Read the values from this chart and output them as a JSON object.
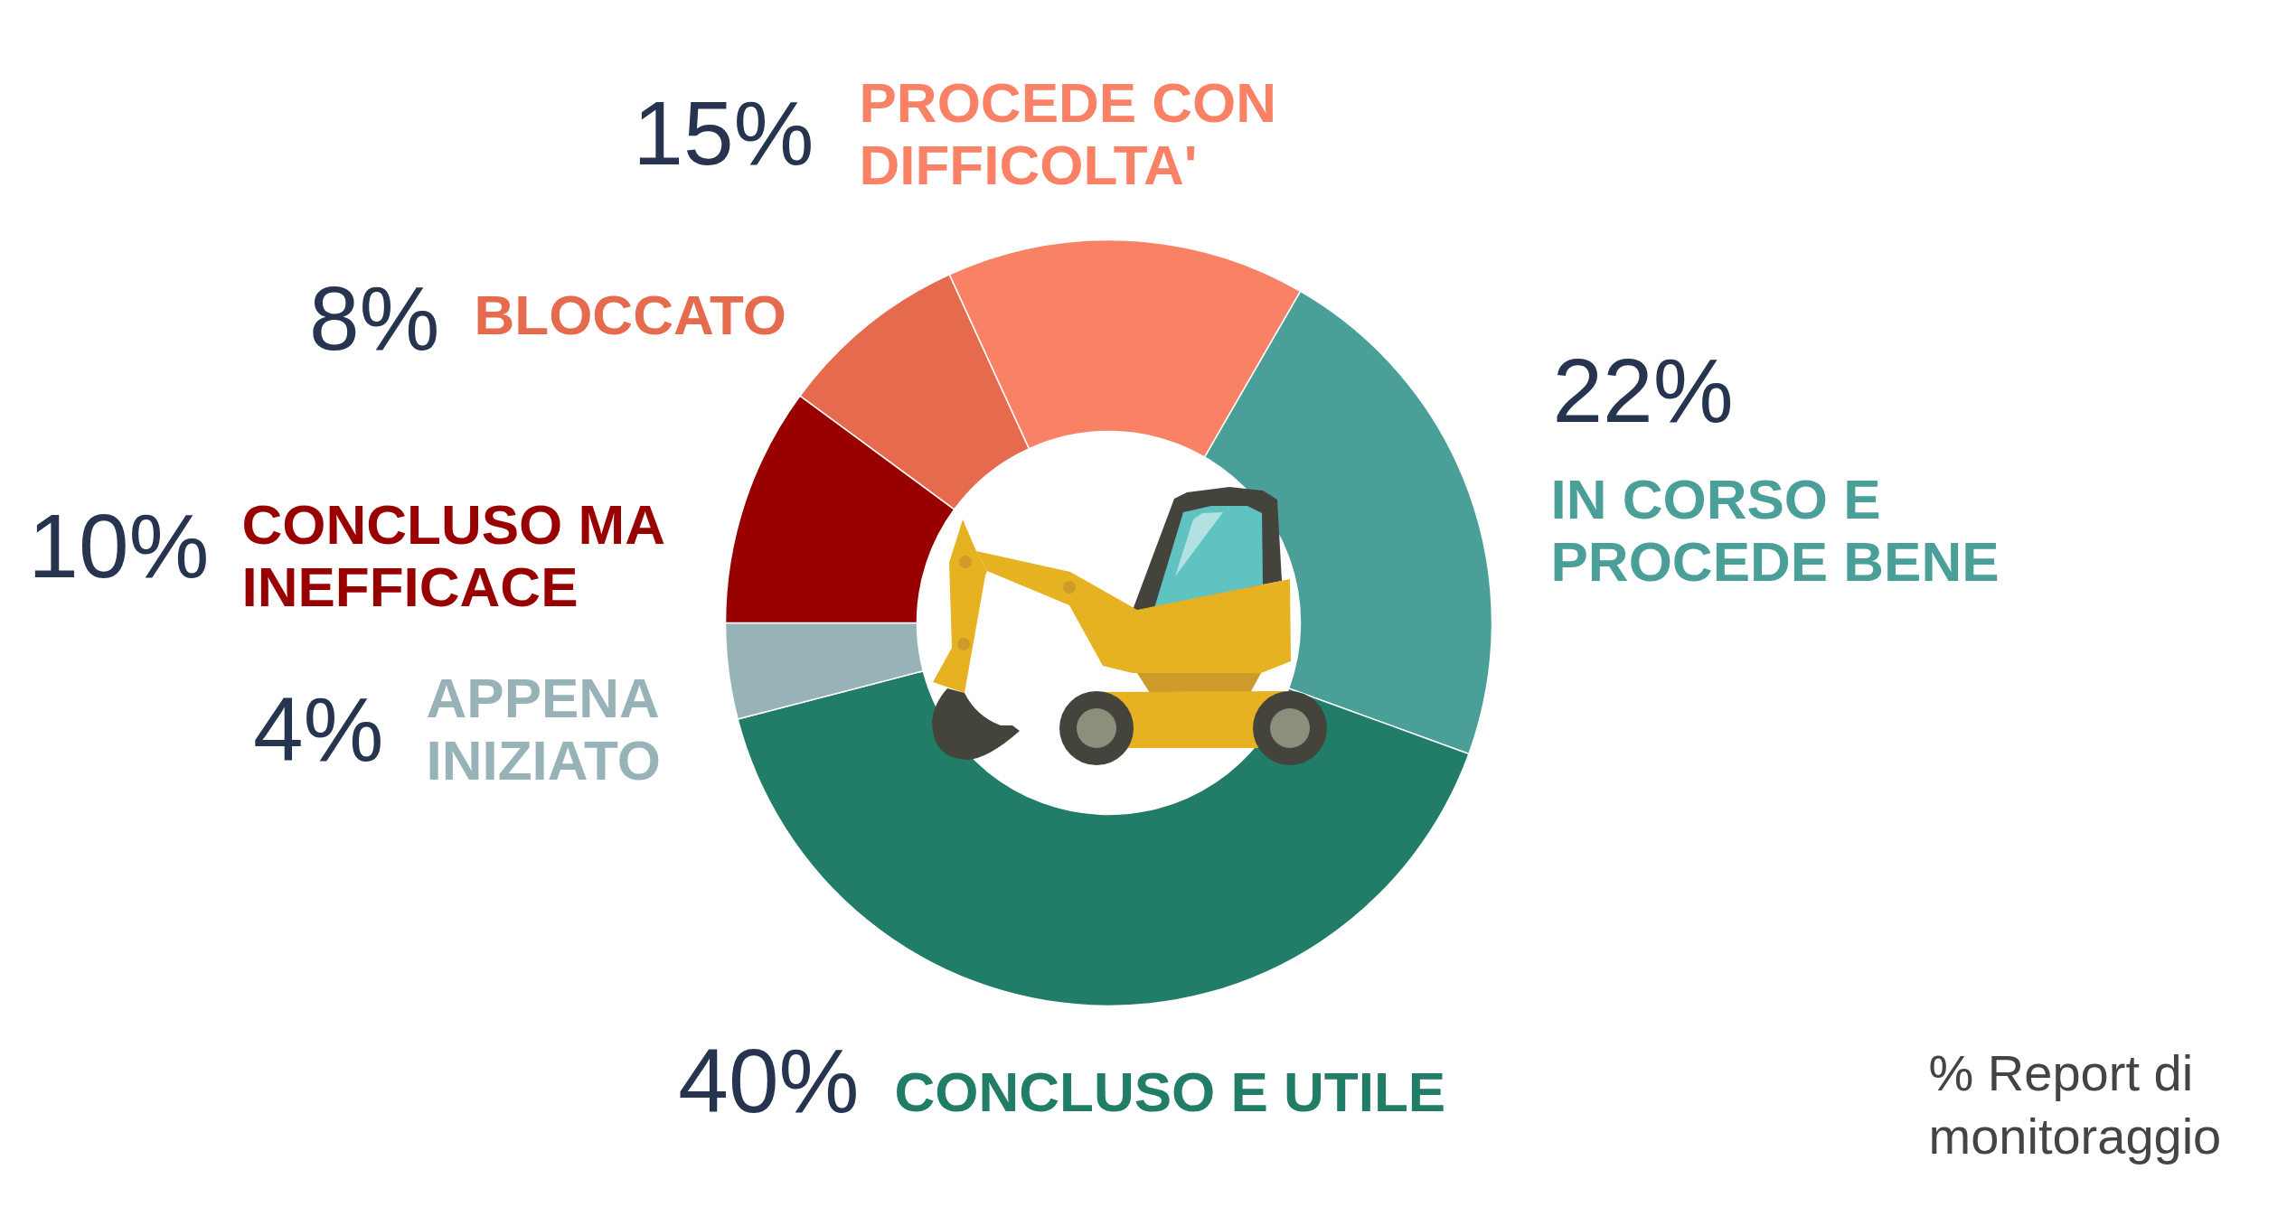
{
  "chart_data": {
    "type": "donut",
    "categories": [
      "IN CORSO E PROCEDE BENE",
      "CONCLUSO E UTILE",
      "APPENA INIZIATO",
      "CONCLUSO MA INEFFICACE",
      "BLOCCATO",
      "PROCEDE CON DIFFICOLTA'"
    ],
    "values": [
      22,
      40,
      4,
      10,
      8,
      15
    ],
    "colors": [
      "#4aa098",
      "#217d67",
      "#97b3b8",
      "#990000",
      "#e66b4e",
      "#f98266"
    ],
    "value_labels": [
      "22%",
      "40%",
      "4%",
      "10%",
      "8%",
      "15%"
    ],
    "annotations": [
      "% Report di monitoraggio"
    ]
  }
}
